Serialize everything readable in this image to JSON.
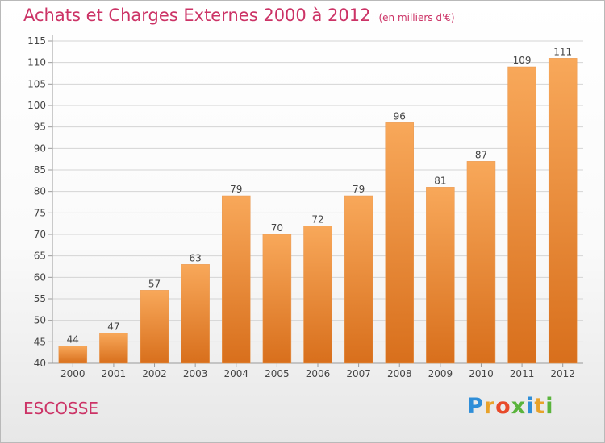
{
  "header": {
    "title": "Achats et Charges Externes 2000 à 2012",
    "subtitle": "(en milliers d'€)"
  },
  "footer": {
    "place": "ESCOSSE",
    "logo": "Proxiti"
  },
  "colors": {
    "title": "#cc3366",
    "bar_light": "#f8a85a",
    "bar_dark": "#d86f1c",
    "grid": "#d4d4d4",
    "axis": "#999999",
    "text": "#444444"
  },
  "chart_data": {
    "type": "bar",
    "title": "Achats et Charges Externes 2000 à 2012",
    "subtitle": "(en milliers d'€)",
    "xlabel": "",
    "ylabel": "",
    "categories": [
      "2000",
      "2001",
      "2002",
      "2003",
      "2004",
      "2005",
      "2006",
      "2007",
      "2008",
      "2009",
      "2010",
      "2011",
      "2012"
    ],
    "values": [
      44,
      47,
      57,
      63,
      79,
      70,
      72,
      79,
      96,
      81,
      87,
      109,
      111
    ],
    "ylim": [
      40,
      115
    ],
    "yticks": [
      40,
      45,
      50,
      55,
      60,
      65,
      70,
      75,
      80,
      85,
      90,
      95,
      100,
      105,
      110,
      115
    ],
    "grid": true,
    "data_labels": true,
    "legend": "none"
  }
}
